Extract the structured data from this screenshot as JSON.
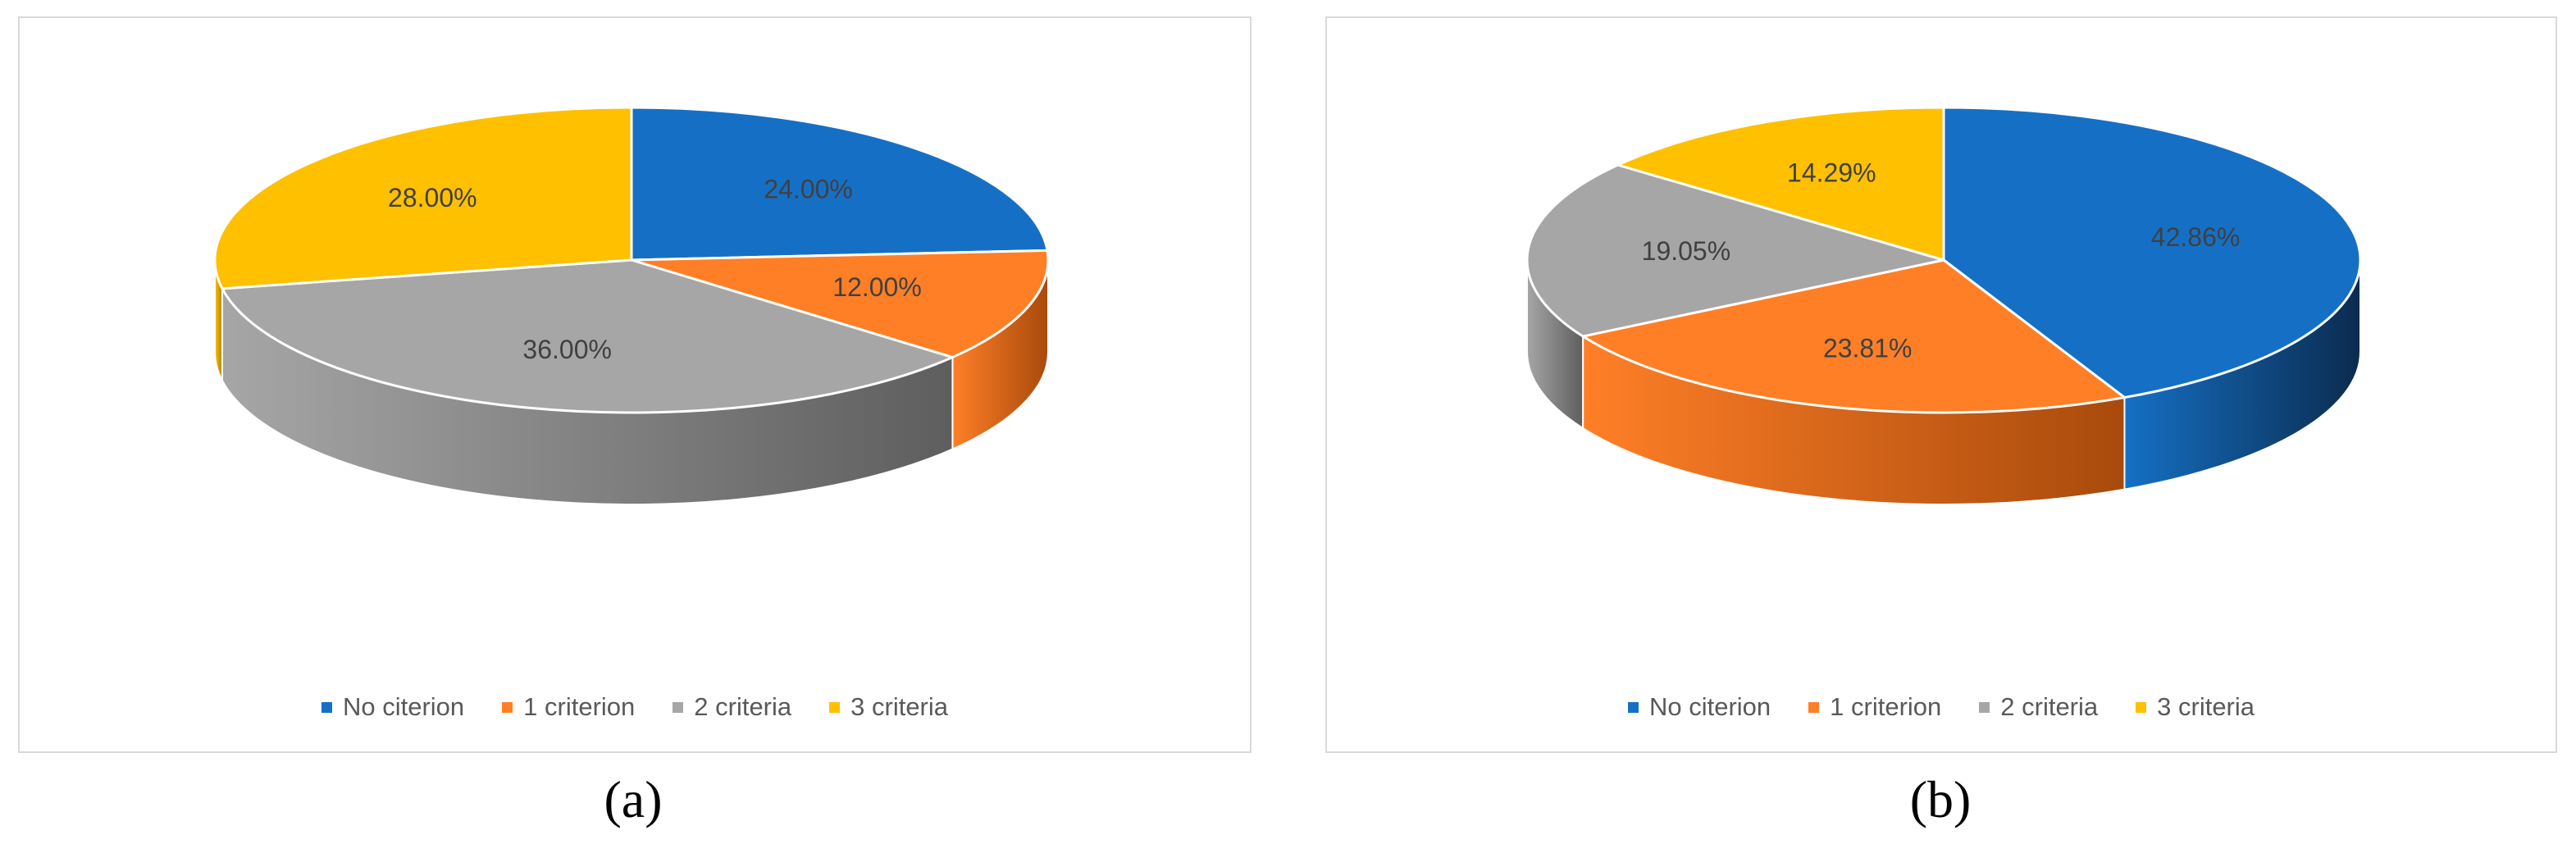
{
  "colors": {
    "No citerion": "#1570c5",
    "1 criterion": "#ff7f27",
    "2 criteria": "#a6a6a6",
    "3 criteria": "#ffc000"
  },
  "chart_data": [
    {
      "type": "pie",
      "title": "",
      "caption": "(a)",
      "legend_position": "bottom",
      "categories": [
        "No citerion",
        "1 criterion",
        "2 criteria",
        "3 criteria"
      ],
      "values": [
        24.0,
        12.0,
        36.0,
        28.0
      ],
      "data_labels": [
        "24.00%",
        "12.00%",
        "36.00%",
        "28.00%"
      ]
    },
    {
      "type": "pie",
      "title": "",
      "caption": "(b)",
      "legend_position": "bottom",
      "categories": [
        "No citerion",
        "1 criterion",
        "2 criteria",
        "3 criteria"
      ],
      "values": [
        42.86,
        23.81,
        19.05,
        14.29
      ],
      "data_labels": [
        "42.86%",
        "23.81%",
        "19.05%",
        "14.29%"
      ]
    }
  ]
}
